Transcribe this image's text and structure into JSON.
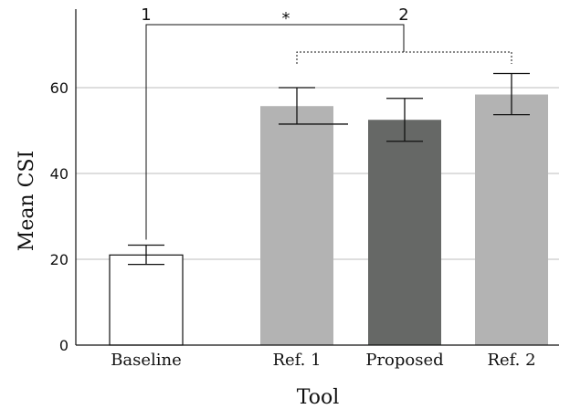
{
  "chart_data": {
    "type": "bar",
    "title": "",
    "xlabel": "Tool",
    "ylabel": "Mean CSI",
    "ylim": [
      0,
      75
    ],
    "yticks": [
      0,
      20,
      40,
      60
    ],
    "grid": true,
    "categories": [
      "Baseline",
      "Ref. 1",
      "Proposed",
      "Ref. 2"
    ],
    "values": [
      21,
      55.7,
      52.5,
      58.4
    ],
    "error_low": [
      18.8,
      51.5,
      47.5,
      53.7
    ],
    "error_high": [
      23.3,
      60.0,
      57.5,
      63.3
    ],
    "bar_colors": [
      "#ffffff",
      "#b3b3b3",
      "#666866",
      "#b3b3b3"
    ],
    "annotations": {
      "bracket1_label": "1",
      "bracket2_label": "2",
      "significance": "*"
    }
  }
}
